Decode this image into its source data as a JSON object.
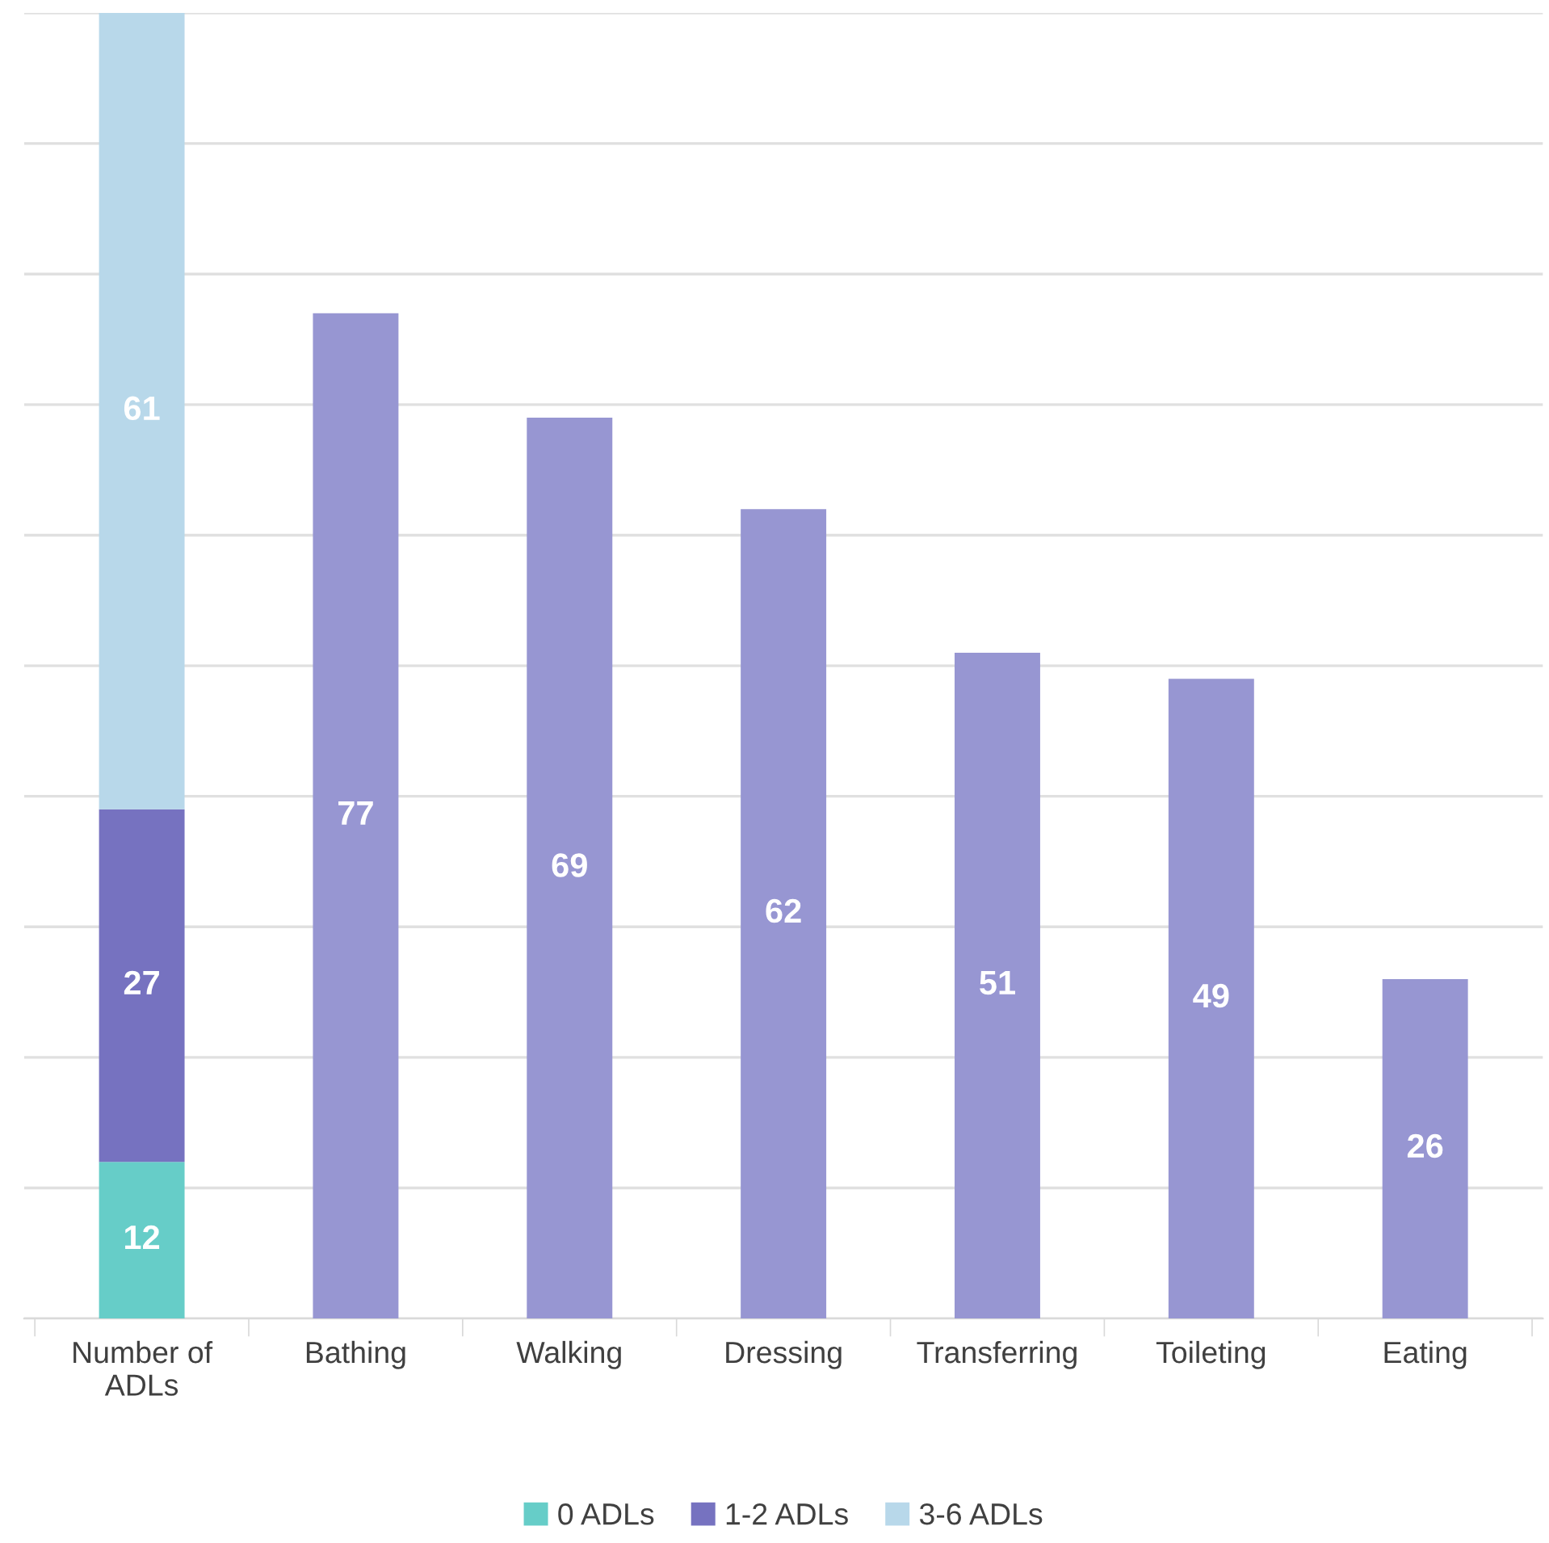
{
  "chart_data": {
    "type": "bar",
    "stacked": true,
    "categories": [
      "Number of\nADLs",
      "Bathing",
      "Walking",
      "Dressing",
      "Transferring",
      "Toileting",
      "Eating"
    ],
    "series": [
      {
        "name": "0 ADLs",
        "color": "#66cdc8",
        "values": [
          12,
          null,
          null,
          null,
          null,
          null,
          null
        ]
      },
      {
        "name": "1-2 ADLs",
        "color": "#7672c0",
        "values": [
          27,
          null,
          null,
          null,
          null,
          null,
          null
        ]
      },
      {
        "name": "3-6 ADLs",
        "color": "#b8d8ea",
        "values": [
          61,
          null,
          null,
          null,
          null,
          null,
          null
        ]
      },
      {
        "color": "#9796d2",
        "values": [
          null,
          77,
          69,
          62,
          51,
          49,
          26
        ]
      }
    ],
    "ylim": [
      0,
      100
    ],
    "yticks": [
      {
        "value": 0,
        "label": null
      },
      {
        "value": 10,
        "label": null
      },
      {
        "value": 20,
        "label": null
      },
      {
        "value": 30,
        "label": null
      },
      {
        "value": 40,
        "label": null
      },
      {
        "value": 50,
        "label": null
      },
      {
        "value": 60,
        "label": null
      },
      {
        "value": 70,
        "label": null
      },
      {
        "value": 80,
        "label": null
      },
      {
        "value": 90,
        "label": null
      },
      {
        "value": 100,
        "label": null
      }
    ],
    "tick_labels": "x",
    "grid": "y",
    "legend": "bottom",
    "data_labels": true
  }
}
